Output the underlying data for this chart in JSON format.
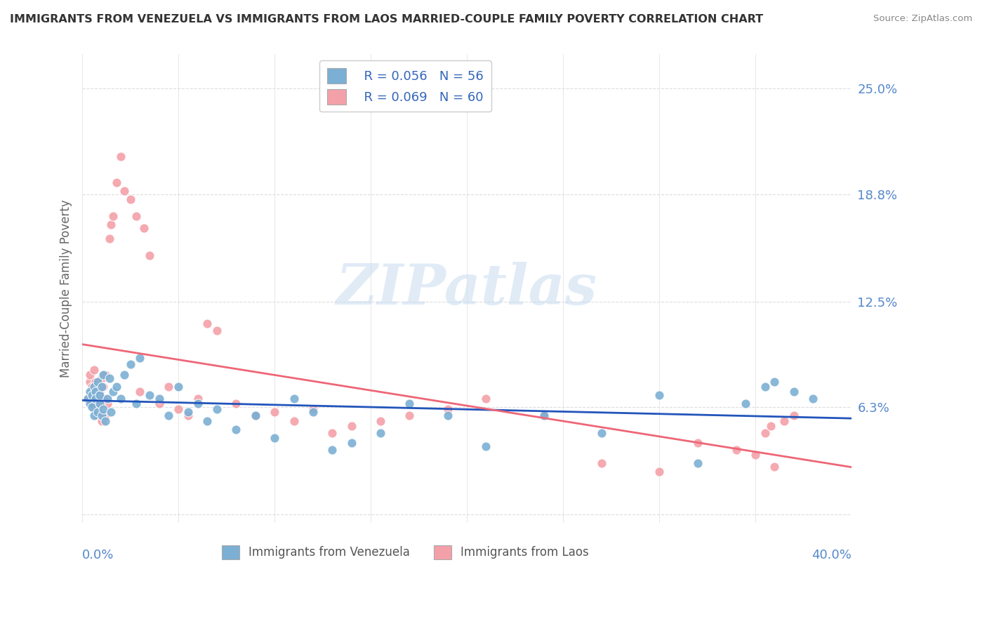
{
  "title": "IMMIGRANTS FROM VENEZUELA VS IMMIGRANTS FROM LAOS MARRIED-COUPLE FAMILY POVERTY CORRELATION CHART",
  "source": "Source: ZipAtlas.com",
  "ylabel": "Married-Couple Family Poverty",
  "xlim": [
    0.0,
    0.4
  ],
  "ylim": [
    -0.005,
    0.27
  ],
  "ytick_vals": [
    0.0,
    0.063,
    0.125,
    0.188,
    0.25
  ],
  "ytick_labels": [
    "",
    "6.3%",
    "12.5%",
    "18.8%",
    "25.0%"
  ],
  "xtick_labels": [
    "0.0%",
    "40.0%"
  ],
  "venezuela_color": "#7BAFD4",
  "laos_color": "#F4A0A8",
  "trend_venezuela_color": "#2255BB",
  "trend_laos_color": "#EE6677",
  "legend_R_venezuela": "R = 0.056",
  "legend_N_venezuela": "N = 56",
  "legend_R_laos": "R = 0.069",
  "legend_N_laos": "N = 60",
  "label_venezuela": "Immigrants from Venezuela",
  "label_laos": "Immigrants from Laos",
  "watermark": "ZIPatlas",
  "background_color": "#FFFFFF",
  "grid_color": "#DDDDDD",
  "venezuela_x": [
    0.003,
    0.004,
    0.004,
    0.005,
    0.005,
    0.006,
    0.006,
    0.007,
    0.007,
    0.008,
    0.008,
    0.009,
    0.009,
    0.01,
    0.01,
    0.011,
    0.011,
    0.012,
    0.013,
    0.014,
    0.015,
    0.016,
    0.018,
    0.02,
    0.022,
    0.025,
    0.028,
    0.03,
    0.035,
    0.04,
    0.045,
    0.05,
    0.055,
    0.06,
    0.065,
    0.07,
    0.08,
    0.09,
    0.1,
    0.11,
    0.12,
    0.13,
    0.14,
    0.155,
    0.17,
    0.19,
    0.21,
    0.24,
    0.27,
    0.3,
    0.32,
    0.345,
    0.355,
    0.36,
    0.37,
    0.38
  ],
  "venezuela_y": [
    0.068,
    0.072,
    0.065,
    0.07,
    0.063,
    0.075,
    0.058,
    0.072,
    0.068,
    0.078,
    0.06,
    0.065,
    0.07,
    0.058,
    0.075,
    0.062,
    0.082,
    0.055,
    0.068,
    0.08,
    0.06,
    0.072,
    0.075,
    0.068,
    0.082,
    0.088,
    0.065,
    0.092,
    0.07,
    0.068,
    0.058,
    0.075,
    0.06,
    0.065,
    0.055,
    0.062,
    0.05,
    0.058,
    0.045,
    0.068,
    0.06,
    0.038,
    0.042,
    0.048,
    0.065,
    0.058,
    0.04,
    0.058,
    0.048,
    0.07,
    0.03,
    0.065,
    0.075,
    0.078,
    0.072,
    0.068
  ],
  "laos_x": [
    0.003,
    0.004,
    0.004,
    0.005,
    0.005,
    0.006,
    0.006,
    0.007,
    0.007,
    0.008,
    0.008,
    0.009,
    0.009,
    0.01,
    0.01,
    0.011,
    0.011,
    0.012,
    0.012,
    0.013,
    0.014,
    0.015,
    0.016,
    0.018,
    0.02,
    0.022,
    0.025,
    0.028,
    0.03,
    0.032,
    0.035,
    0.04,
    0.045,
    0.05,
    0.055,
    0.06,
    0.065,
    0.07,
    0.08,
    0.09,
    0.1,
    0.11,
    0.12,
    0.13,
    0.14,
    0.155,
    0.17,
    0.19,
    0.21,
    0.24,
    0.27,
    0.3,
    0.32,
    0.34,
    0.35,
    0.355,
    0.358,
    0.36,
    0.365,
    0.37
  ],
  "laos_y": [
    0.068,
    0.078,
    0.082,
    0.075,
    0.065,
    0.072,
    0.085,
    0.062,
    0.078,
    0.068,
    0.058,
    0.065,
    0.072,
    0.08,
    0.055,
    0.075,
    0.068,
    0.082,
    0.058,
    0.065,
    0.162,
    0.17,
    0.175,
    0.195,
    0.21,
    0.19,
    0.185,
    0.175,
    0.072,
    0.168,
    0.152,
    0.065,
    0.075,
    0.062,
    0.058,
    0.068,
    0.112,
    0.108,
    0.065,
    0.058,
    0.06,
    0.055,
    0.062,
    0.048,
    0.052,
    0.055,
    0.058,
    0.062,
    0.068,
    0.058,
    0.03,
    0.025,
    0.042,
    0.038,
    0.035,
    0.048,
    0.052,
    0.028,
    0.055,
    0.058
  ]
}
